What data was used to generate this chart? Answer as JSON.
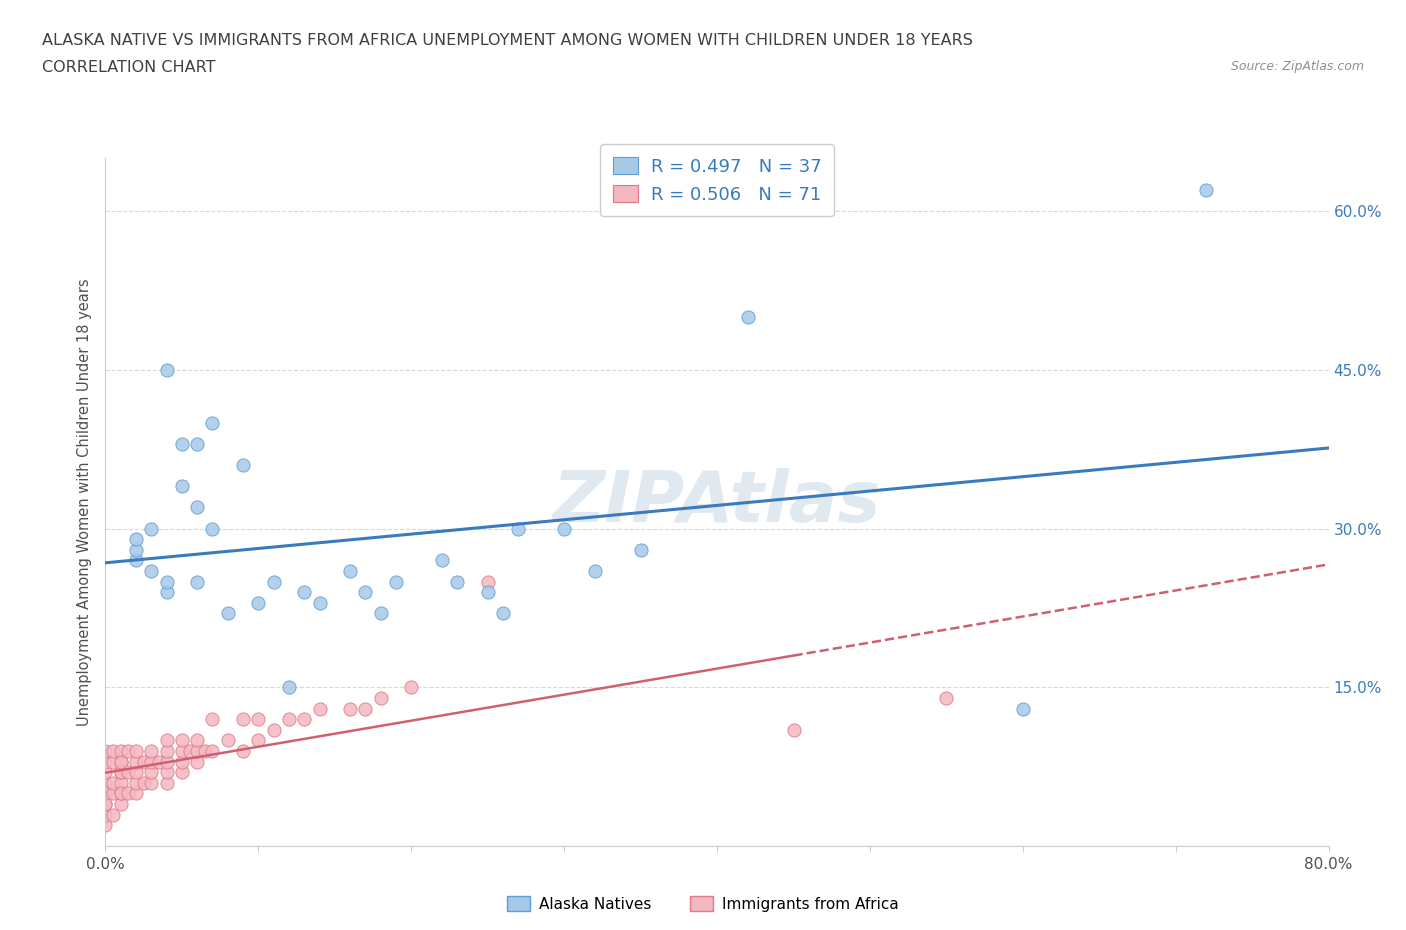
{
  "title_line1": "ALASKA NATIVE VS IMMIGRANTS FROM AFRICA UNEMPLOYMENT AMONG WOMEN WITH CHILDREN UNDER 18 YEARS",
  "title_line2": "CORRELATION CHART",
  "source_text": "Source: ZipAtlas.com",
  "ylabel": "Unemployment Among Women with Children Under 18 years",
  "xlim": [
    0.0,
    0.8
  ],
  "ylim": [
    0.0,
    0.65
  ],
  "x_ticks": [
    0.0,
    0.1,
    0.2,
    0.3,
    0.4,
    0.5,
    0.6,
    0.7,
    0.8
  ],
  "y_ticks": [
    0.0,
    0.15,
    0.3,
    0.45,
    0.6
  ],
  "alaska_R": 0.497,
  "alaska_N": 37,
  "africa_R": 0.506,
  "africa_N": 71,
  "alaska_color": "#a8c8e8",
  "alaska_edge_color": "#5a9fd4",
  "africa_color": "#f4b8c0",
  "africa_edge_color": "#e07888",
  "alaska_line_color": "#3a7bbf",
  "africa_line_color": "#d06070",
  "alaska_scatter_x": [
    0.02,
    0.02,
    0.02,
    0.03,
    0.03,
    0.04,
    0.04,
    0.04,
    0.05,
    0.05,
    0.06,
    0.06,
    0.06,
    0.07,
    0.07,
    0.08,
    0.09,
    0.1,
    0.11,
    0.12,
    0.13,
    0.14,
    0.16,
    0.17,
    0.18,
    0.19,
    0.22,
    0.23,
    0.25,
    0.26,
    0.27,
    0.3,
    0.32,
    0.35,
    0.42,
    0.6,
    0.72
  ],
  "alaska_scatter_y": [
    0.27,
    0.28,
    0.29,
    0.26,
    0.3,
    0.24,
    0.25,
    0.45,
    0.34,
    0.38,
    0.25,
    0.32,
    0.38,
    0.3,
    0.4,
    0.22,
    0.36,
    0.23,
    0.25,
    0.15,
    0.24,
    0.23,
    0.26,
    0.24,
    0.22,
    0.25,
    0.27,
    0.25,
    0.24,
    0.22,
    0.3,
    0.3,
    0.26,
    0.28,
    0.5,
    0.13,
    0.62
  ],
  "africa_scatter_x": [
    0.0,
    0.0,
    0.0,
    0.0,
    0.0,
    0.0,
    0.0,
    0.0,
    0.0,
    0.0,
    0.005,
    0.005,
    0.005,
    0.005,
    0.005,
    0.01,
    0.01,
    0.01,
    0.01,
    0.01,
    0.01,
    0.01,
    0.01,
    0.01,
    0.015,
    0.015,
    0.015,
    0.02,
    0.02,
    0.02,
    0.02,
    0.02,
    0.025,
    0.025,
    0.03,
    0.03,
    0.03,
    0.03,
    0.035,
    0.04,
    0.04,
    0.04,
    0.04,
    0.04,
    0.05,
    0.05,
    0.05,
    0.05,
    0.055,
    0.06,
    0.06,
    0.06,
    0.065,
    0.07,
    0.07,
    0.08,
    0.09,
    0.09,
    0.1,
    0.1,
    0.11,
    0.12,
    0.13,
    0.14,
    0.16,
    0.17,
    0.18,
    0.2,
    0.25,
    0.45,
    0.55
  ],
  "africa_scatter_y": [
    0.02,
    0.03,
    0.04,
    0.05,
    0.06,
    0.07,
    0.08,
    0.09,
    0.04,
    0.05,
    0.03,
    0.05,
    0.06,
    0.08,
    0.09,
    0.04,
    0.05,
    0.06,
    0.07,
    0.08,
    0.09,
    0.05,
    0.07,
    0.08,
    0.05,
    0.07,
    0.09,
    0.05,
    0.06,
    0.07,
    0.08,
    0.09,
    0.06,
    0.08,
    0.06,
    0.07,
    0.08,
    0.09,
    0.08,
    0.06,
    0.07,
    0.08,
    0.09,
    0.1,
    0.07,
    0.08,
    0.09,
    0.1,
    0.09,
    0.08,
    0.09,
    0.1,
    0.09,
    0.09,
    0.12,
    0.1,
    0.09,
    0.12,
    0.1,
    0.12,
    0.11,
    0.12,
    0.12,
    0.13,
    0.13,
    0.13,
    0.14,
    0.15,
    0.25,
    0.11,
    0.14
  ],
  "background_color": "#ffffff",
  "grid_color": "#d8d8d8",
  "watermark_text": "ZIPAtlas",
  "tick_label_color_right": "#3a7bbf"
}
